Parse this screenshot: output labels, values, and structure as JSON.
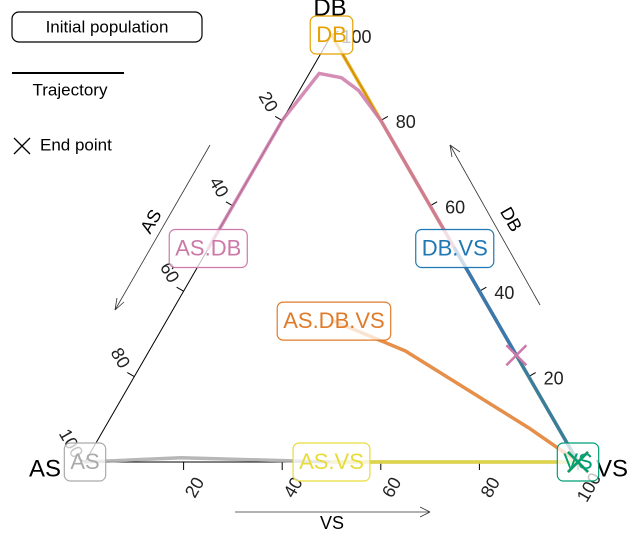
{
  "chart_data": {
    "type": "ternary",
    "axes": {
      "as": {
        "title": "AS",
        "ticks": [
          20,
          40,
          60,
          80,
          100
        ]
      },
      "db": {
        "title": "DB",
        "ticks": [
          20,
          40,
          60,
          80,
          100
        ]
      },
      "vs": {
        "title": "VS",
        "ticks": [
          20,
          40,
          60,
          80,
          100
        ]
      }
    },
    "legend": {
      "initial": "Initial population",
      "trajectory": "Trajectory",
      "end": "End point"
    },
    "series": [
      {
        "name": "DB",
        "color": "#e6a000",
        "as": [
          0,
          0
        ],
        "db": [
          100,
          0
        ],
        "vs": [
          0,
          100
        ]
      },
      {
        "name": "AS.DB",
        "color": "#cc79a7",
        "as": [
          50,
          20,
          7,
          3,
          1,
          0,
          0
        ],
        "db": [
          50,
          80,
          91,
          90,
          87,
          80,
          25
        ],
        "vs": [
          0,
          0,
          2,
          7,
          12,
          20,
          75
        ]
      },
      {
        "name": "DB.VS",
        "color": "#1f78b4",
        "as": [
          0,
          0
        ],
        "db": [
          50,
          0
        ],
        "vs": [
          50,
          100
        ]
      },
      {
        "name": "AS.DB.VS",
        "color": "#e07b2a",
        "as": [
          33,
          22,
          6,
          0
        ],
        "db": [
          33,
          26,
          8,
          0
        ],
        "vs": [
          34,
          52,
          86,
          100
        ]
      },
      {
        "name": "AS",
        "color": "#aaaaaa",
        "as": [
          100,
          80,
          50,
          0
        ],
        "db": [
          0,
          1,
          0,
          0
        ],
        "vs": [
          0,
          19,
          50,
          100
        ]
      },
      {
        "name": "AS.VS",
        "color": "#e8dc3a",
        "as": [
          50,
          0
        ],
        "db": [
          0,
          0
        ],
        "vs": [
          50,
          100
        ]
      },
      {
        "name": "VS",
        "color": "#009e73",
        "as": [
          0,
          0
        ],
        "db": [
          0,
          0
        ],
        "vs": [
          100,
          100
        ]
      }
    ]
  }
}
